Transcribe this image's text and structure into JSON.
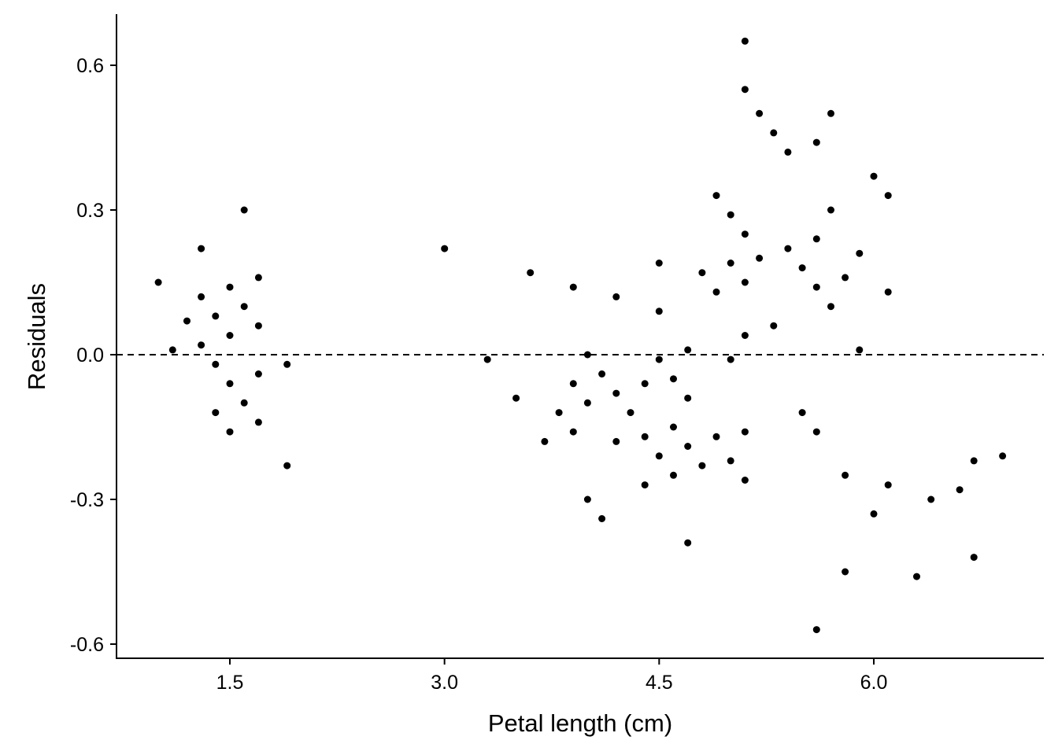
{
  "chart_data": {
    "type": "scatter",
    "title": "",
    "xlabel": "Petal length (cm)",
    "ylabel": "Residuals",
    "xlim": [
      0.7,
      7.1
    ],
    "ylim": [
      -0.63,
      0.72
    ],
    "x_ticks": [
      1.5,
      3.0,
      4.5,
      6.0
    ],
    "x_tick_labels": [
      "1.5",
      "3.0",
      "4.5",
      "6.0"
    ],
    "y_ticks": [
      -0.6,
      -0.3,
      0.0,
      0.3,
      0.6
    ],
    "y_tick_labels": [
      "-0.6",
      "-0.3",
      "0.0",
      "0.3",
      "0.6"
    ],
    "grid": false,
    "reference_line": {
      "y": 0.0,
      "style": "dashed"
    },
    "point_color": "#000000",
    "points": [
      [
        1.0,
        0.15
      ],
      [
        1.1,
        0.01
      ],
      [
        1.2,
        0.07
      ],
      [
        1.3,
        0.22
      ],
      [
        1.3,
        0.12
      ],
      [
        1.3,
        0.02
      ],
      [
        1.4,
        0.08
      ],
      [
        1.4,
        -0.02
      ],
      [
        1.4,
        -0.12
      ],
      [
        1.5,
        0.14
      ],
      [
        1.5,
        0.04
      ],
      [
        1.5,
        -0.06
      ],
      [
        1.5,
        -0.16
      ],
      [
        1.6,
        0.3
      ],
      [
        1.6,
        0.1
      ],
      [
        1.6,
        -0.1
      ],
      [
        1.7,
        0.16
      ],
      [
        1.7,
        0.06
      ],
      [
        1.7,
        -0.04
      ],
      [
        1.7,
        -0.14
      ],
      [
        1.9,
        -0.02
      ],
      [
        1.9,
        -0.23
      ],
      [
        3.0,
        0.22
      ],
      [
        3.3,
        -0.01
      ],
      [
        3.5,
        -0.09
      ],
      [
        3.6,
        0.17
      ],
      [
        3.7,
        -0.18
      ],
      [
        3.8,
        -0.12
      ],
      [
        3.9,
        0.14
      ],
      [
        3.9,
        -0.06
      ],
      [
        3.9,
        -0.16
      ],
      [
        4.0,
        0.0
      ],
      [
        4.0,
        -0.1
      ],
      [
        4.0,
        -0.3
      ],
      [
        4.1,
        -0.04
      ],
      [
        4.1,
        -0.34
      ],
      [
        4.2,
        0.12
      ],
      [
        4.2,
        -0.08
      ],
      [
        4.2,
        -0.18
      ],
      [
        4.3,
        -0.12
      ],
      [
        4.4,
        -0.06
      ],
      [
        4.4,
        -0.17
      ],
      [
        4.4,
        -0.27
      ],
      [
        4.5,
        0.19
      ],
      [
        4.5,
        0.09
      ],
      [
        4.5,
        -0.01
      ],
      [
        4.5,
        -0.21
      ],
      [
        4.6,
        -0.05
      ],
      [
        4.6,
        -0.15
      ],
      [
        4.6,
        -0.25
      ],
      [
        4.7,
        0.01
      ],
      [
        4.7,
        -0.09
      ],
      [
        4.7,
        -0.19
      ],
      [
        4.7,
        -0.39
      ],
      [
        4.8,
        0.17
      ],
      [
        4.8,
        -0.23
      ],
      [
        4.9,
        0.33
      ],
      [
        4.9,
        0.13
      ],
      [
        4.9,
        -0.17
      ],
      [
        5.0,
        0.29
      ],
      [
        5.0,
        0.19
      ],
      [
        5.0,
        -0.01
      ],
      [
        5.0,
        -0.22
      ],
      [
        5.1,
        0.65
      ],
      [
        5.1,
        0.55
      ],
      [
        5.1,
        0.25
      ],
      [
        5.1,
        0.15
      ],
      [
        5.1,
        0.04
      ],
      [
        5.1,
        -0.16
      ],
      [
        5.1,
        -0.26
      ],
      [
        5.2,
        0.5
      ],
      [
        5.2,
        0.2
      ],
      [
        5.3,
        0.46
      ],
      [
        5.3,
        0.06
      ],
      [
        5.4,
        0.42
      ],
      [
        5.4,
        0.22
      ],
      [
        5.5,
        0.18
      ],
      [
        5.5,
        -0.12
      ],
      [
        5.6,
        0.44
      ],
      [
        5.6,
        0.24
      ],
      [
        5.6,
        0.14
      ],
      [
        5.6,
        -0.16
      ],
      [
        5.6,
        -0.57
      ],
      [
        5.7,
        0.5
      ],
      [
        5.7,
        0.3
      ],
      [
        5.7,
        0.1
      ],
      [
        5.8,
        0.16
      ],
      [
        5.8,
        -0.25
      ],
      [
        5.8,
        -0.45
      ],
      [
        5.9,
        0.21
      ],
      [
        5.9,
        0.01
      ],
      [
        6.0,
        0.37
      ],
      [
        6.0,
        -0.33
      ],
      [
        6.1,
        0.33
      ],
      [
        6.1,
        0.13
      ],
      [
        6.1,
        -0.27
      ],
      [
        6.3,
        -0.46
      ],
      [
        6.4,
        -0.3
      ],
      [
        6.6,
        -0.28
      ],
      [
        6.7,
        -0.22
      ],
      [
        6.7,
        -0.42
      ],
      [
        6.9,
        -0.21
      ]
    ]
  }
}
